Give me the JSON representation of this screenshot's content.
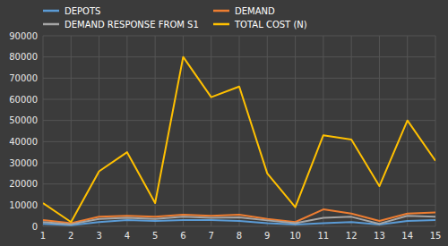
{
  "chart_data": {
    "type": "line",
    "x": [
      1,
      2,
      3,
      4,
      5,
      6,
      7,
      8,
      9,
      10,
      11,
      12,
      13,
      14,
      15
    ],
    "series": [
      {
        "name": "DEPOTS",
        "color": "#5b9bd5",
        "values": [
          1200,
          500,
          2000,
          3000,
          2500,
          3000,
          3000,
          2500,
          1500,
          800,
          1500,
          2000,
          800,
          2500,
          3000
        ]
      },
      {
        "name": "DEMAND",
        "color": "#ed7d31",
        "values": [
          3000,
          1500,
          4500,
          5000,
          4500,
          5500,
          5000,
          5500,
          3500,
          2000,
          8000,
          6000,
          2500,
          6000,
          6500
        ]
      },
      {
        "name": "DEMAND RESPONSE FROM S1",
        "color": "#a5a5a5",
        "values": [
          2000,
          1000,
          3500,
          4000,
          3500,
          4500,
          4000,
          4200,
          2800,
          1500,
          4000,
          4500,
          1200,
          5000,
          4500
        ]
      },
      {
        "name": "TOTAL COST (N)",
        "color": "#ffc000",
        "values": [
          11000,
          2000,
          26000,
          35000,
          11000,
          80000,
          61000,
          66000,
          25000,
          9000,
          43000,
          41000,
          19000,
          50000,
          31000
        ]
      }
    ],
    "xlim": [
      1,
      15
    ],
    "xticks": [
      1,
      2,
      3,
      4,
      5,
      6,
      7,
      8,
      9,
      10,
      11,
      12,
      13,
      14,
      15
    ],
    "ylim": [
      0,
      90000
    ],
    "yticks": [
      0,
      10000,
      20000,
      30000,
      40000,
      50000,
      60000,
      70000,
      80000,
      90000
    ],
    "grid": true,
    "legend": "top"
  }
}
